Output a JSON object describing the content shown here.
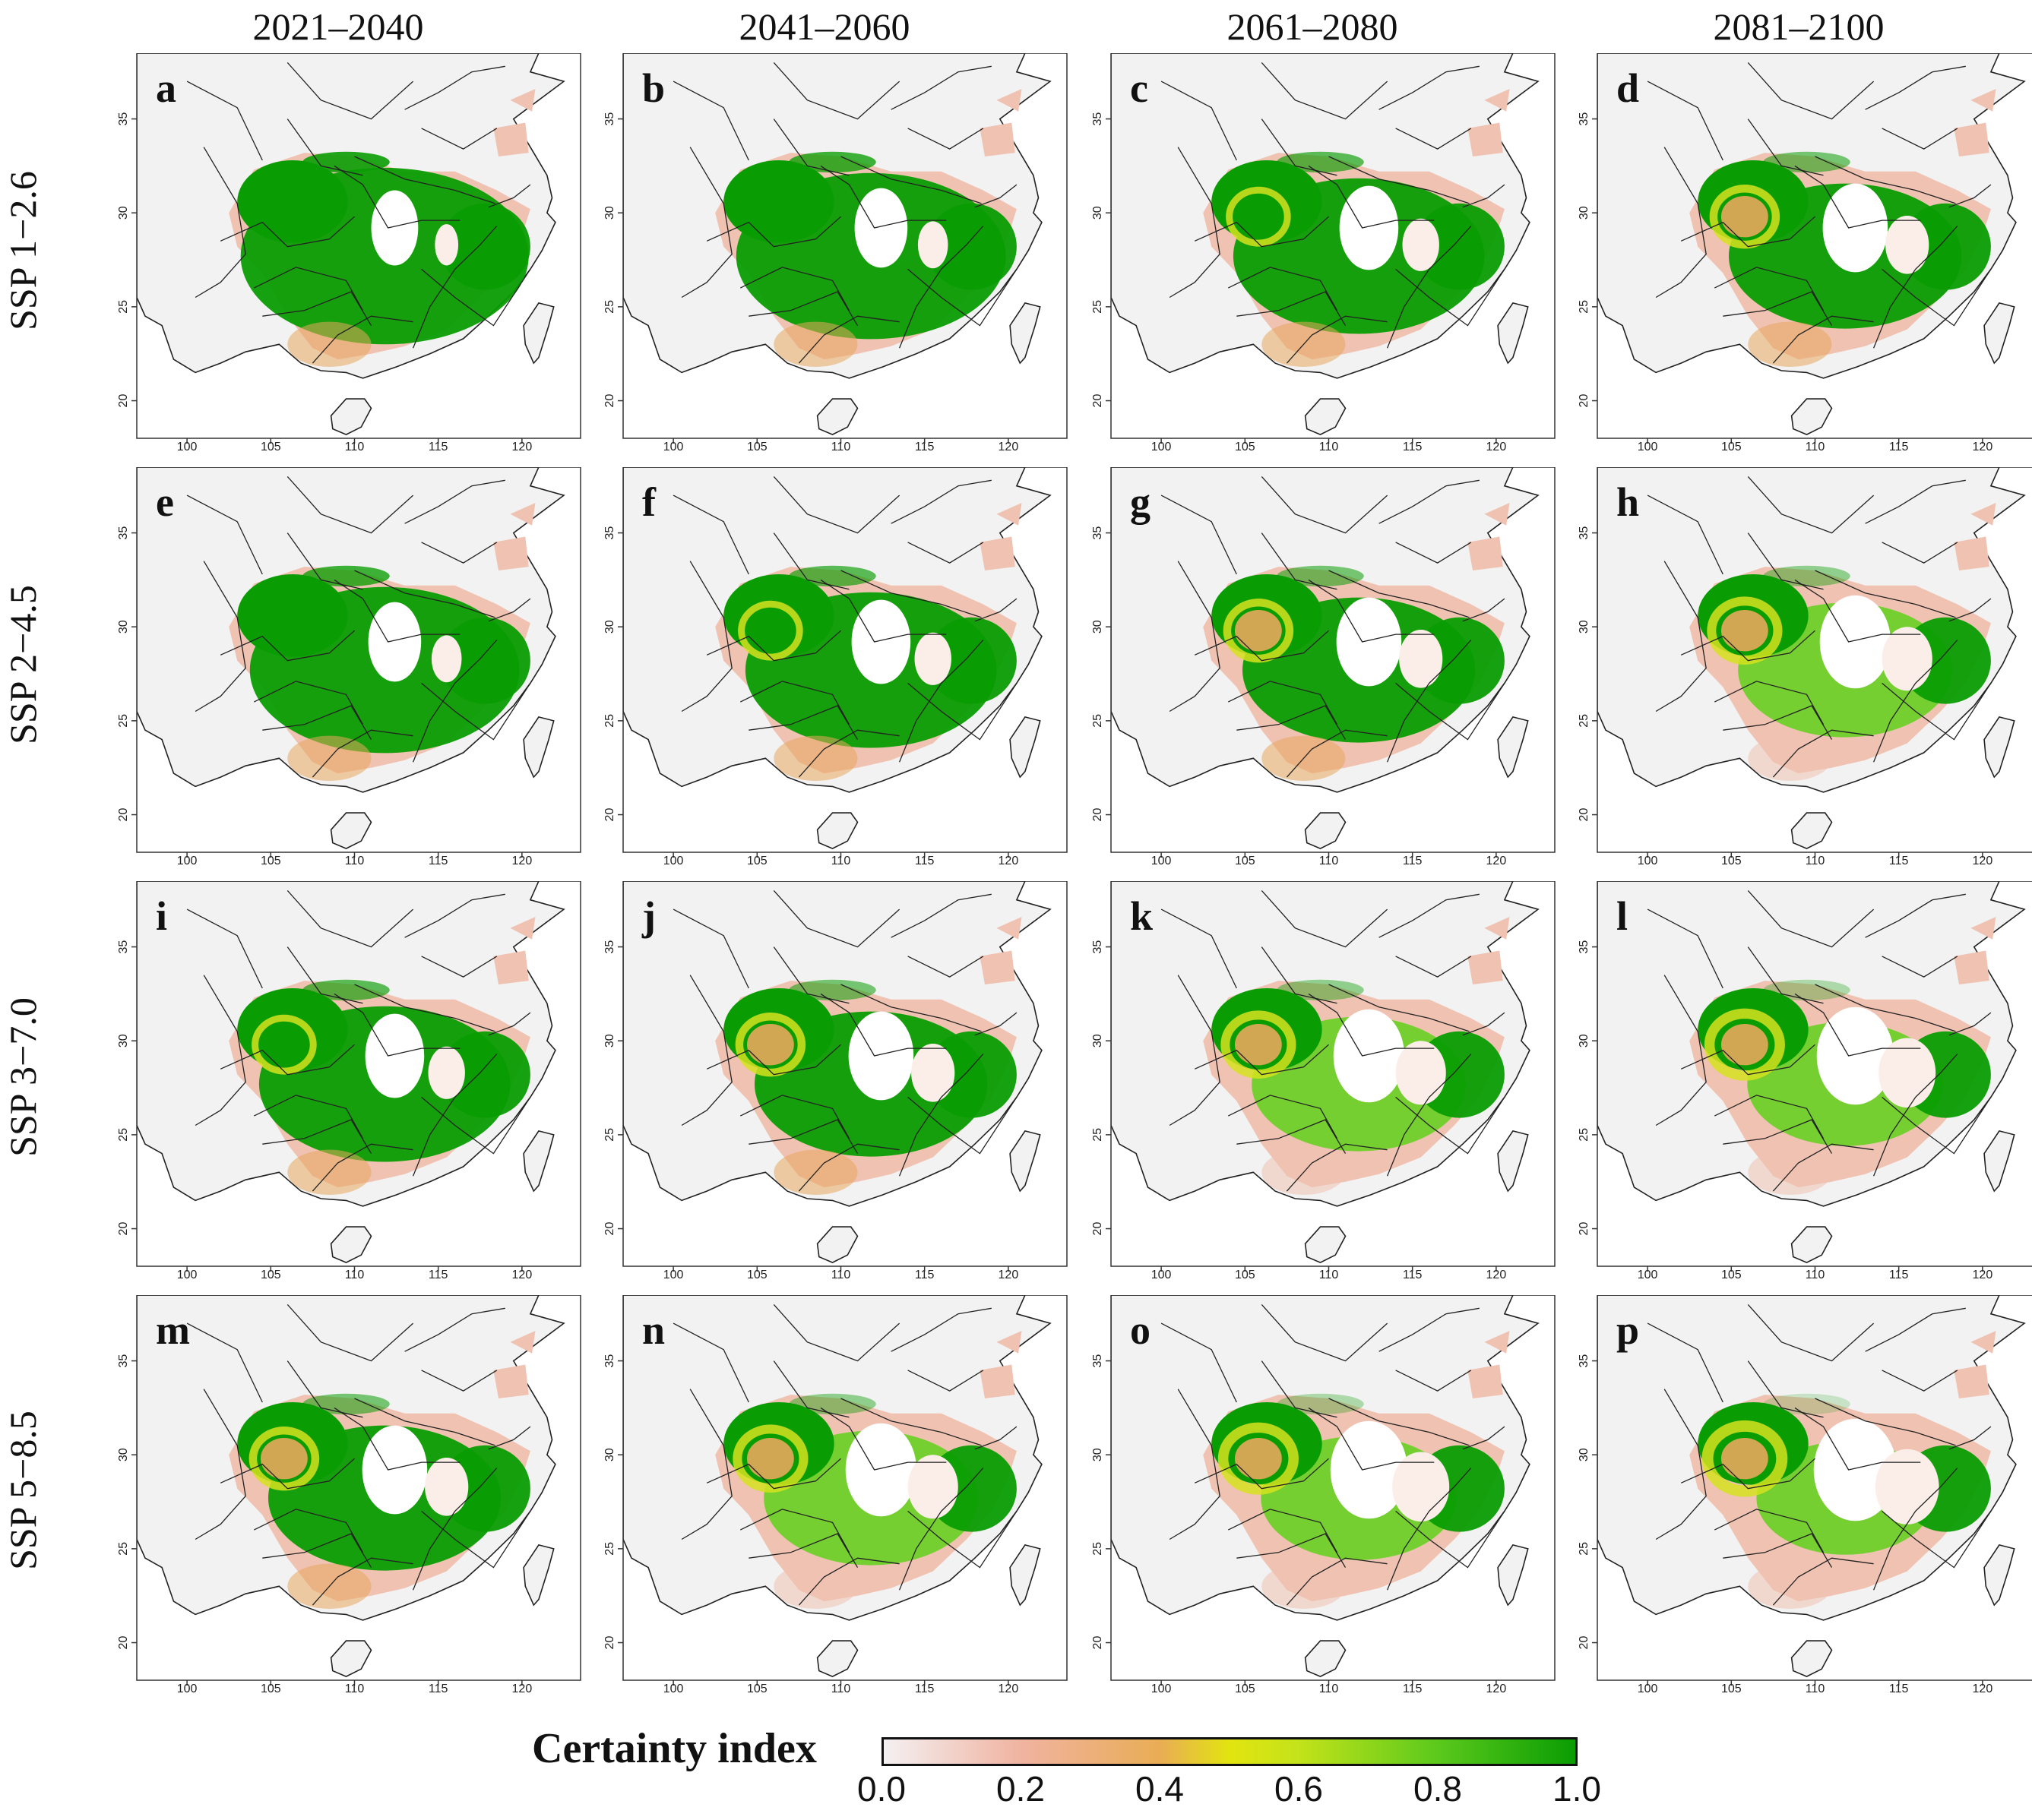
{
  "columns": [
    "2021–2040",
    "2041–2060",
    "2061–2080",
    "2081–2100"
  ],
  "rows": [
    "SSP 1−2.6",
    "SSP 2−4.5",
    "SSP  3−7.0",
    "SSP 5−8.5"
  ],
  "panels": [
    "a",
    "b",
    "c",
    "d",
    "e",
    "f",
    "g",
    "h",
    "i",
    "j",
    "k",
    "l",
    "m",
    "n",
    "o",
    "p"
  ],
  "axes": {
    "x_ticks": [
      100,
      105,
      110,
      115,
      120
    ],
    "y_ticks": [
      20,
      25,
      30,
      35
    ],
    "x_ticks_text": [
      "100",
      "105",
      "110",
      "115",
      "120"
    ],
    "y_ticks_text": [
      "20",
      "25",
      "30",
      "35"
    ],
    "x_range": [
      97,
      123.5
    ],
    "y_range": [
      18,
      38.5
    ]
  },
  "legend": {
    "title": "Certainty index",
    "ticks": [
      "0.0",
      "0.2",
      "0.4",
      "0.6",
      "0.8",
      "1.0"
    ],
    "colors": [
      "#f4f0f2",
      "#f0b3a0",
      "#e9ad55",
      "#e2e410",
      "#5cc91c",
      "#0a9d03"
    ]
  },
  "colors": {
    "land": "#f2f2f2",
    "low_pink": "#f0c2b2",
    "orange": "#e8a85c",
    "yellow": "#d6e21e",
    "light_green": "#6fd02a",
    "dark_green": "#0a9d03",
    "border": "#222222"
  }
}
